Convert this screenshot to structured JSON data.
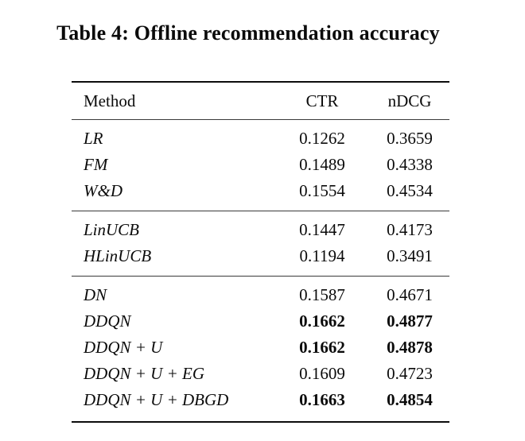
{
  "caption": "Table 4: Offline recommendation accuracy",
  "table": {
    "headers": {
      "method": "Method",
      "ctr": "CTR",
      "ndcg": "nDCG"
    },
    "groups": [
      {
        "rows": [
          {
            "method": "LR",
            "ctr": "0.1262",
            "ndcg": "0.3659",
            "bold": false
          },
          {
            "method": "FM",
            "ctr": "0.1489",
            "ndcg": "0.4338",
            "bold": false
          },
          {
            "method": "W&D",
            "ctr": "0.1554",
            "ndcg": "0.4534",
            "bold": false
          }
        ]
      },
      {
        "rows": [
          {
            "method": "LinUCB",
            "ctr": "0.1447",
            "ndcg": "0.4173",
            "bold": false
          },
          {
            "method": "HLinUCB",
            "ctr": "0.1194",
            "ndcg": "0.3491",
            "bold": false
          }
        ]
      },
      {
        "rows": [
          {
            "method": "DN",
            "ctr": "0.1587",
            "ndcg": "0.4671",
            "bold": false
          },
          {
            "method": "DDQN",
            "ctr": "0.1662",
            "ndcg": "0.4877",
            "bold": true
          },
          {
            "method": "DDQN + U",
            "ctr": "0.1662",
            "ndcg": "0.4878",
            "bold": true
          },
          {
            "method": "DDQN + U + EG",
            "ctr": "0.1609",
            "ndcg": "0.4723",
            "bold": false
          },
          {
            "method": "DDQN + U + DBGD",
            "ctr": "0.1663",
            "ndcg": "0.4854",
            "bold": true
          }
        ]
      }
    ]
  }
}
